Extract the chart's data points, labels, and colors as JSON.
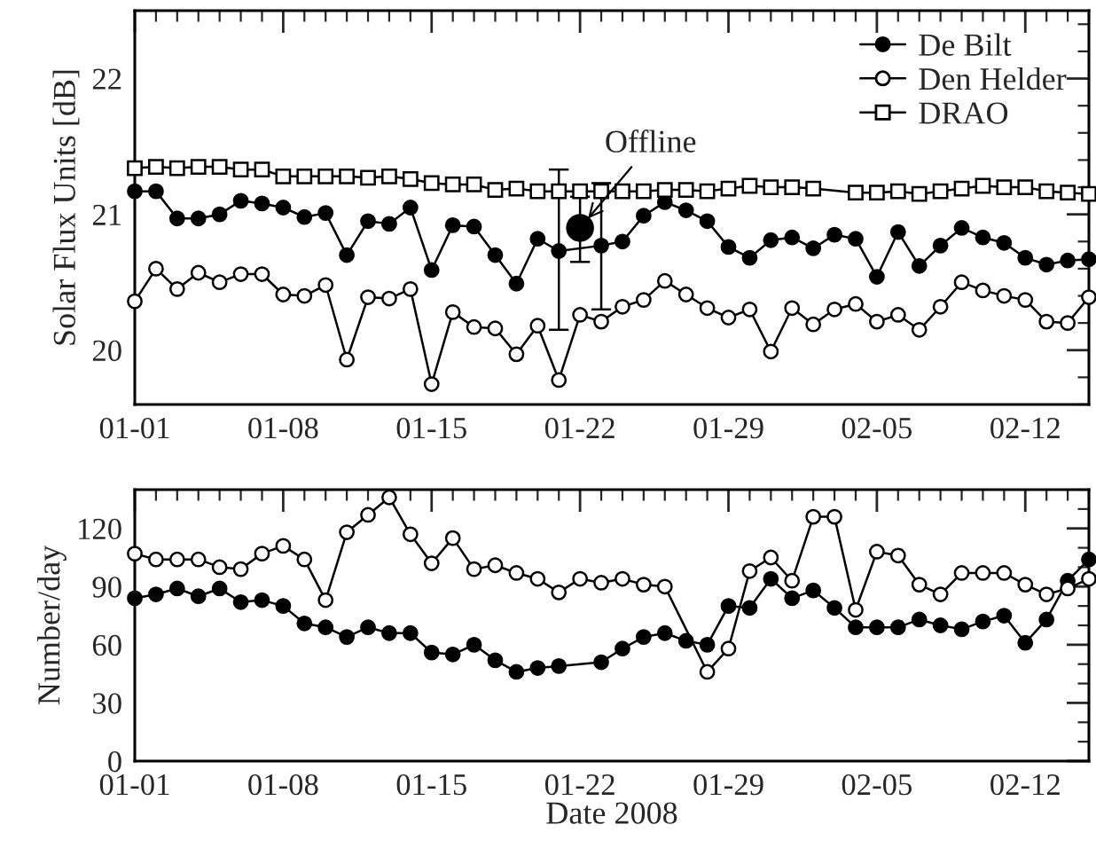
{
  "chart_data": [
    {
      "type": "line",
      "ylabel": "Solar Flux Units [dB]",
      "ylim": [
        19.6,
        22.5
      ],
      "yticks": [
        20,
        21,
        22
      ],
      "xlim": [
        "2008-01-01",
        "2008-02-15"
      ],
      "xticks": [
        {
          "value": "2008-01-01",
          "label": "01-01"
        },
        {
          "value": "2008-01-08",
          "label": "01-08"
        },
        {
          "value": "2008-01-15",
          "label": "01-15"
        },
        {
          "value": "2008-01-22",
          "label": "01-22"
        },
        {
          "value": "2008-01-29",
          "label": "01-29"
        },
        {
          "value": "2008-02-05",
          "label": "02-05"
        },
        {
          "value": "2008-02-12",
          "label": "02-12"
        }
      ],
      "legend": "top right",
      "annotations": [
        {
          "text": "Offline",
          "x": "2008-01-22",
          "y": 20.9
        }
      ],
      "series": [
        {
          "name": "De Bilt",
          "color": "#000000",
          "marker": "circle",
          "x": [
            "2008-01-01",
            "2008-01-02",
            "2008-01-03",
            "2008-01-04",
            "2008-01-05",
            "2008-01-06",
            "2008-01-07",
            "2008-01-08",
            "2008-01-09",
            "2008-01-10",
            "2008-01-11",
            "2008-01-12",
            "2008-01-13",
            "2008-01-14",
            "2008-01-15",
            "2008-01-16",
            "2008-01-17",
            "2008-01-18",
            "2008-01-19",
            "2008-01-20",
            "2008-01-21",
            "2008-01-23",
            "2008-01-24",
            "2008-01-25",
            "2008-01-26",
            "2008-01-27",
            "2008-01-28",
            "2008-01-29",
            "2008-01-30",
            "2008-01-31",
            "2008-02-01",
            "2008-02-02",
            "2008-02-03",
            "2008-02-04",
            "2008-02-05",
            "2008-02-06",
            "2008-02-07",
            "2008-02-08",
            "2008-02-09",
            "2008-02-10",
            "2008-02-11",
            "2008-02-12",
            "2008-02-13",
            "2008-02-14",
            "2008-02-15"
          ],
          "values": [
            21.17,
            21.17,
            20.97,
            20.97,
            21.0,
            21.1,
            21.08,
            21.05,
            20.98,
            21.01,
            20.7,
            20.95,
            20.93,
            21.05,
            20.59,
            20.92,
            20.91,
            20.7,
            20.49,
            20.82,
            20.73,
            20.77,
            20.8,
            20.99,
            21.09,
            21.03,
            20.95,
            20.76,
            20.68,
            20.81,
            20.83,
            20.75,
            20.85,
            20.82,
            20.54,
            20.87,
            20.62,
            20.77,
            20.9,
            20.83,
            20.79,
            20.68,
            20.63,
            20.66,
            20.67
          ],
          "errors": [
            null,
            null,
            null,
            null,
            null,
            null,
            null,
            null,
            null,
            null,
            null,
            null,
            null,
            null,
            null,
            null,
            null,
            null,
            null,
            null,
            [
              20.15,
              21.33
            ],
            [
              20.3,
              21.23
            ],
            null,
            null,
            null,
            null,
            null,
            null,
            null,
            null,
            null,
            null,
            null,
            null,
            null,
            null,
            null,
            null,
            null,
            null,
            null,
            null,
            null,
            null,
            null
          ]
        },
        {
          "name": "Den Helder",
          "color": "#000000",
          "marker": "circle",
          "x": [
            "2008-01-01",
            "2008-01-02",
            "2008-01-03",
            "2008-01-04",
            "2008-01-05",
            "2008-01-06",
            "2008-01-07",
            "2008-01-08",
            "2008-01-09",
            "2008-01-10",
            "2008-01-11",
            "2008-01-12",
            "2008-01-13",
            "2008-01-14",
            "2008-01-15",
            "2008-01-16",
            "2008-01-17",
            "2008-01-18",
            "2008-01-19",
            "2008-01-20",
            "2008-01-21",
            "2008-01-22",
            "2008-01-23",
            "2008-01-24",
            "2008-01-25",
            "2008-01-26",
            "2008-01-27",
            "2008-01-28",
            "2008-01-29",
            "2008-01-30",
            "2008-01-31",
            "2008-02-01",
            "2008-02-02",
            "2008-02-03",
            "2008-02-04",
            "2008-02-05",
            "2008-02-06",
            "2008-02-07",
            "2008-02-08",
            "2008-02-09",
            "2008-02-10",
            "2008-02-11",
            "2008-02-12",
            "2008-02-13",
            "2008-02-14",
            "2008-02-15"
          ],
          "values": [
            20.36,
            20.6,
            20.45,
            20.57,
            20.5,
            20.56,
            20.56,
            20.41,
            20.4,
            20.48,
            19.93,
            20.39,
            20.38,
            20.45,
            19.75,
            20.28,
            20.17,
            20.16,
            19.97,
            20.18,
            19.78,
            20.26,
            20.21,
            20.32,
            20.37,
            20.51,
            20.41,
            20.31,
            20.24,
            20.3,
            19.99,
            20.31,
            20.19,
            20.3,
            20.34,
            20.21,
            20.26,
            20.15,
            20.32,
            20.5,
            20.44,
            20.4,
            20.37,
            20.21,
            20.2,
            20.39
          ]
        },
        {
          "name": "DRAO",
          "color": "#000000",
          "marker": "square",
          "x": [
            "2008-01-01",
            "2008-01-02",
            "2008-01-03",
            "2008-01-04",
            "2008-01-05",
            "2008-01-06",
            "2008-01-07",
            "2008-01-08",
            "2008-01-09",
            "2008-01-10",
            "2008-01-11",
            "2008-01-12",
            "2008-01-13",
            "2008-01-14",
            "2008-01-15",
            "2008-01-16",
            "2008-01-17",
            "2008-01-18",
            "2008-01-19",
            "2008-01-20",
            "2008-01-21",
            "2008-01-22",
            "2008-01-23",
            "2008-01-24",
            "2008-01-25",
            "2008-01-26",
            "2008-01-27",
            "2008-01-28",
            "2008-01-29",
            "2008-01-30",
            "2008-01-31",
            "2008-02-01",
            "2008-02-02",
            "2008-02-04",
            "2008-02-05",
            "2008-02-06",
            "2008-02-07",
            "2008-02-08",
            "2008-02-09",
            "2008-02-10",
            "2008-02-11",
            "2008-02-12",
            "2008-02-13",
            "2008-02-14",
            "2008-02-15"
          ],
          "values": [
            21.34,
            21.35,
            21.34,
            21.35,
            21.35,
            21.33,
            21.33,
            21.28,
            21.28,
            21.28,
            21.28,
            21.27,
            21.28,
            21.26,
            21.23,
            21.22,
            21.22,
            21.18,
            21.19,
            21.17,
            21.17,
            21.17,
            21.17,
            21.17,
            21.17,
            21.18,
            21.18,
            21.17,
            21.19,
            21.21,
            21.2,
            21.2,
            21.19,
            21.16,
            21.16,
            21.17,
            21.15,
            21.17,
            21.19,
            21.21,
            21.2,
            21.2,
            21.17,
            21.16,
            21.15
          ]
        },
        {
          "type": "scatter",
          "color": "#000000",
          "marker": "circle",
          "x": [
            "2008-01-22"
          ],
          "values": [
            20.9
          ],
          "errors": [
            [
              20.65,
              21.13
            ]
          ]
        }
      ]
    },
    {
      "type": "line",
      "xlabel": "Date 2008",
      "ylabel": "Number/day",
      "ylim": [
        0,
        140
      ],
      "yticks": [
        0,
        30,
        60,
        90,
        120
      ],
      "xlim": [
        "2008-01-01",
        "2008-02-15"
      ],
      "xticks": [
        {
          "value": "2008-01-01",
          "label": "01-01"
        },
        {
          "value": "2008-01-08",
          "label": "01-08"
        },
        {
          "value": "2008-01-15",
          "label": "01-15"
        },
        {
          "value": "2008-01-22",
          "label": "01-22"
        },
        {
          "value": "2008-01-29",
          "label": "01-29"
        },
        {
          "value": "2008-02-05",
          "label": "02-05"
        },
        {
          "value": "2008-02-12",
          "label": "02-12"
        }
      ],
      "series": [
        {
          "color": "#000000",
          "marker": "circle",
          "x": [
            "2008-01-01",
            "2008-01-02",
            "2008-01-03",
            "2008-01-04",
            "2008-01-05",
            "2008-01-06",
            "2008-01-07",
            "2008-01-08",
            "2008-01-09",
            "2008-01-10",
            "2008-01-11",
            "2008-01-12",
            "2008-01-13",
            "2008-01-14",
            "2008-01-15",
            "2008-01-16",
            "2008-01-17",
            "2008-01-18",
            "2008-01-19",
            "2008-01-20",
            "2008-01-21",
            "2008-01-23",
            "2008-01-24",
            "2008-01-25",
            "2008-01-26",
            "2008-01-27",
            "2008-01-28",
            "2008-01-29",
            "2008-01-30",
            "2008-01-31",
            "2008-02-01",
            "2008-02-02",
            "2008-02-03",
            "2008-02-04",
            "2008-02-05",
            "2008-02-06",
            "2008-02-07",
            "2008-02-08",
            "2008-02-09",
            "2008-02-10",
            "2008-02-11",
            "2008-02-12",
            "2008-02-13",
            "2008-02-14",
            "2008-02-15"
          ],
          "values": [
            84,
            86,
            89,
            85,
            89,
            82,
            83,
            80,
            71,
            69,
            64,
            69,
            66,
            66,
            56,
            55,
            60,
            52,
            46,
            48,
            49,
            51,
            58,
            64,
            66,
            62,
            60,
            80,
            79,
            94,
            84,
            88,
            79,
            69,
            69,
            69,
            73,
            70,
            68,
            72,
            75,
            61,
            73,
            93,
            104
          ]
        },
        {
          "color": "#000000",
          "marker": "circle",
          "x": [
            "2008-01-01",
            "2008-01-02",
            "2008-01-03",
            "2008-01-04",
            "2008-01-05",
            "2008-01-06",
            "2008-01-07",
            "2008-01-08",
            "2008-01-09",
            "2008-01-10",
            "2008-01-11",
            "2008-01-12",
            "2008-01-13",
            "2008-01-14",
            "2008-01-15",
            "2008-01-16",
            "2008-01-17",
            "2008-01-18",
            "2008-01-19",
            "2008-01-20",
            "2008-01-21",
            "2008-01-22",
            "2008-01-23",
            "2008-01-24",
            "2008-01-25",
            "2008-01-26",
            "2008-01-28",
            "2008-01-29",
            "2008-01-30",
            "2008-01-31",
            "2008-02-01",
            "2008-02-02",
            "2008-02-03",
            "2008-02-04",
            "2008-02-05",
            "2008-02-06",
            "2008-02-07",
            "2008-02-08",
            "2008-02-09",
            "2008-02-10",
            "2008-02-11",
            "2008-02-12",
            "2008-02-13",
            "2008-02-14",
            "2008-02-15"
          ],
          "values": [
            107,
            104,
            104,
            104,
            100,
            99,
            107,
            111,
            104,
            83,
            118,
            127,
            136,
            117,
            102,
            115,
            99,
            101,
            97,
            94,
            87,
            94,
            92,
            94,
            91,
            90,
            46,
            58,
            98,
            105,
            93,
            126,
            126,
            78,
            108,
            106,
            91,
            86,
            97,
            97,
            97,
            91,
            86,
            89,
            94
          ]
        }
      ]
    }
  ]
}
